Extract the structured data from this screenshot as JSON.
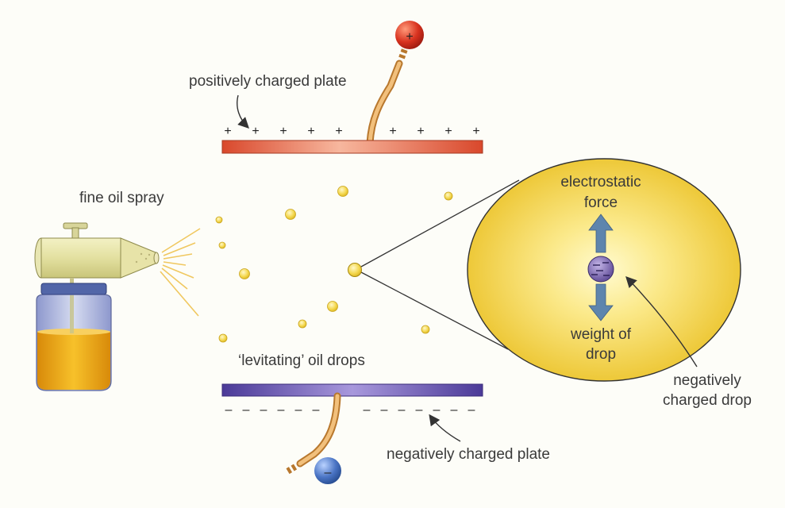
{
  "labels": {
    "positive_plate": "positively charged plate",
    "fine_oil_spray": "fine oil spray",
    "levitating_drops": "‘levitating’ oil drops",
    "negative_plate": "negatively charged plate",
    "electrostatic_line1": "electrostatic",
    "electrostatic_line2": "force",
    "weight_line1": "weight of",
    "weight_line2": "drop",
    "neg_drop_line1": "negatively",
    "neg_drop_line2": "charged drop"
  },
  "symbols": {
    "plus": "+",
    "minus": "–",
    "top_plate_charges": [
      "+",
      "+",
      "+",
      "+",
      "+",
      "+",
      "+",
      "+",
      "+"
    ],
    "bottom_plate_charges": [
      "–",
      "–",
      "–",
      "–",
      "–",
      "–",
      "–",
      "–",
      "–",
      "–",
      "–",
      "–",
      "–",
      "–"
    ]
  },
  "colors": {
    "positive_plate": "#e0623f",
    "negative_plate": "#5c4aa6",
    "oil_drop": "#f4d850",
    "zoom_circle": "#f0cd2e",
    "force_arrow": "#5e85ad",
    "positive_terminal": "#c92a1e",
    "negative_terminal": "#3f68b8",
    "wire": "#e9a95a",
    "oil_in_jar": "#f0a81a"
  },
  "icons": [
    "spray-bottle-icon",
    "positive-terminal-icon",
    "negative-terminal-icon",
    "oil-drop-icon"
  ]
}
